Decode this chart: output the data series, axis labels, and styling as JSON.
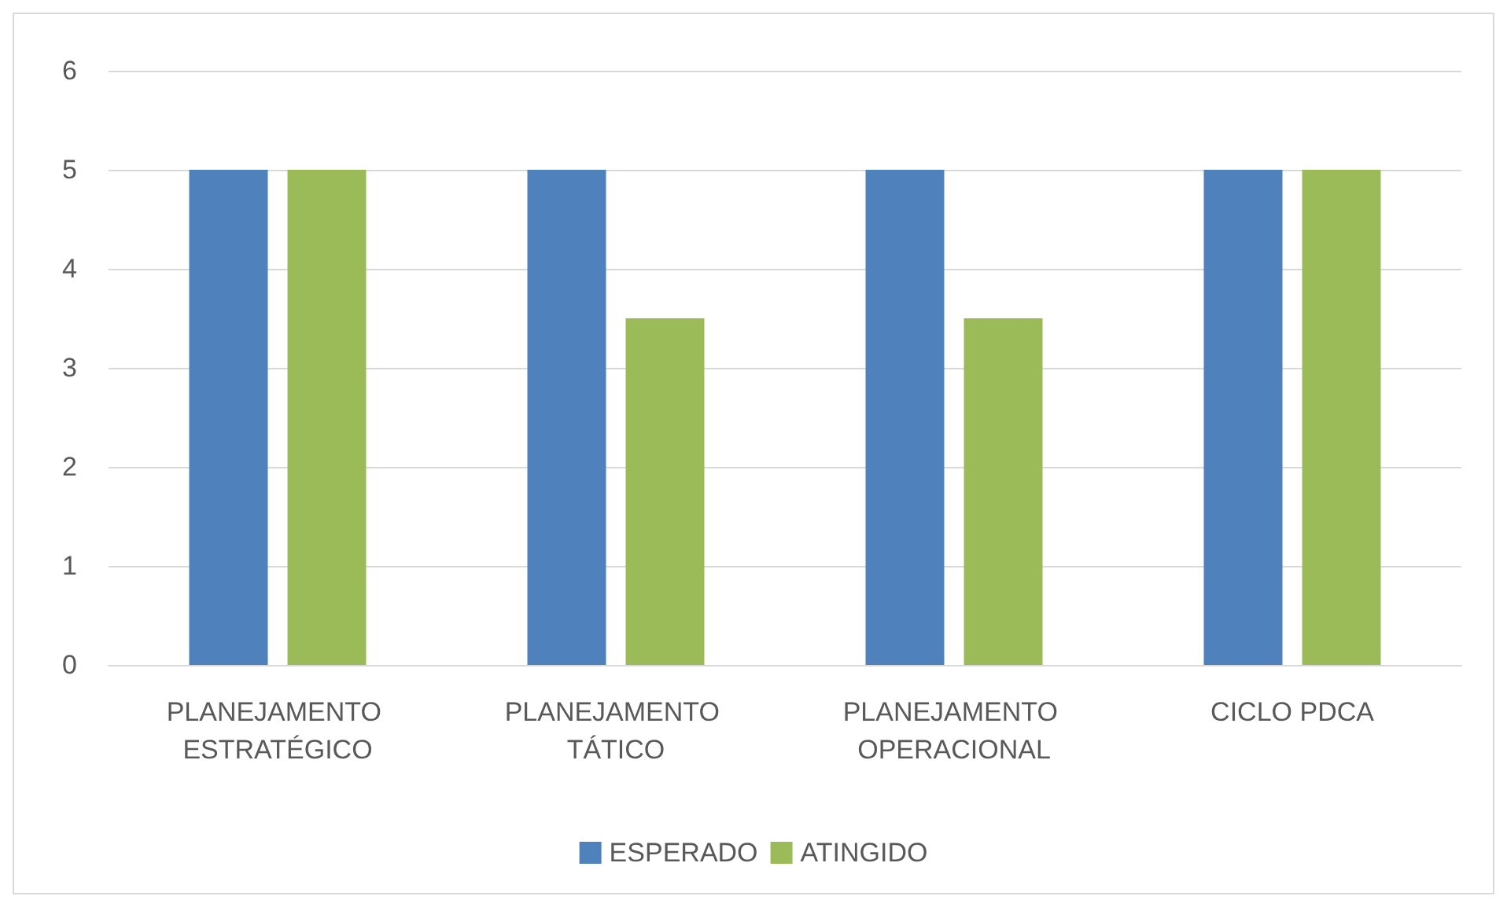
{
  "chart_data": {
    "type": "bar",
    "categories": [
      "PLANEJAMENTO ESTRATÉGICO",
      "PLANEJAMENTO TÁTICO",
      "PLANEJAMENTO OPERACIONAL",
      "CICLO PDCA"
    ],
    "series": [
      {
        "name": "ESPERADO",
        "color": "#4f81bd",
        "values": [
          5,
          5,
          5,
          5
        ]
      },
      {
        "name": "ATINGIDO",
        "color": "#9bbb59",
        "values": [
          5,
          3.5,
          3.5,
          5
        ]
      }
    ],
    "ylim": [
      0,
      6
    ],
    "yticks": [
      0,
      1,
      2,
      3,
      4,
      5,
      6
    ],
    "grid": "y",
    "legend": "bottom"
  }
}
